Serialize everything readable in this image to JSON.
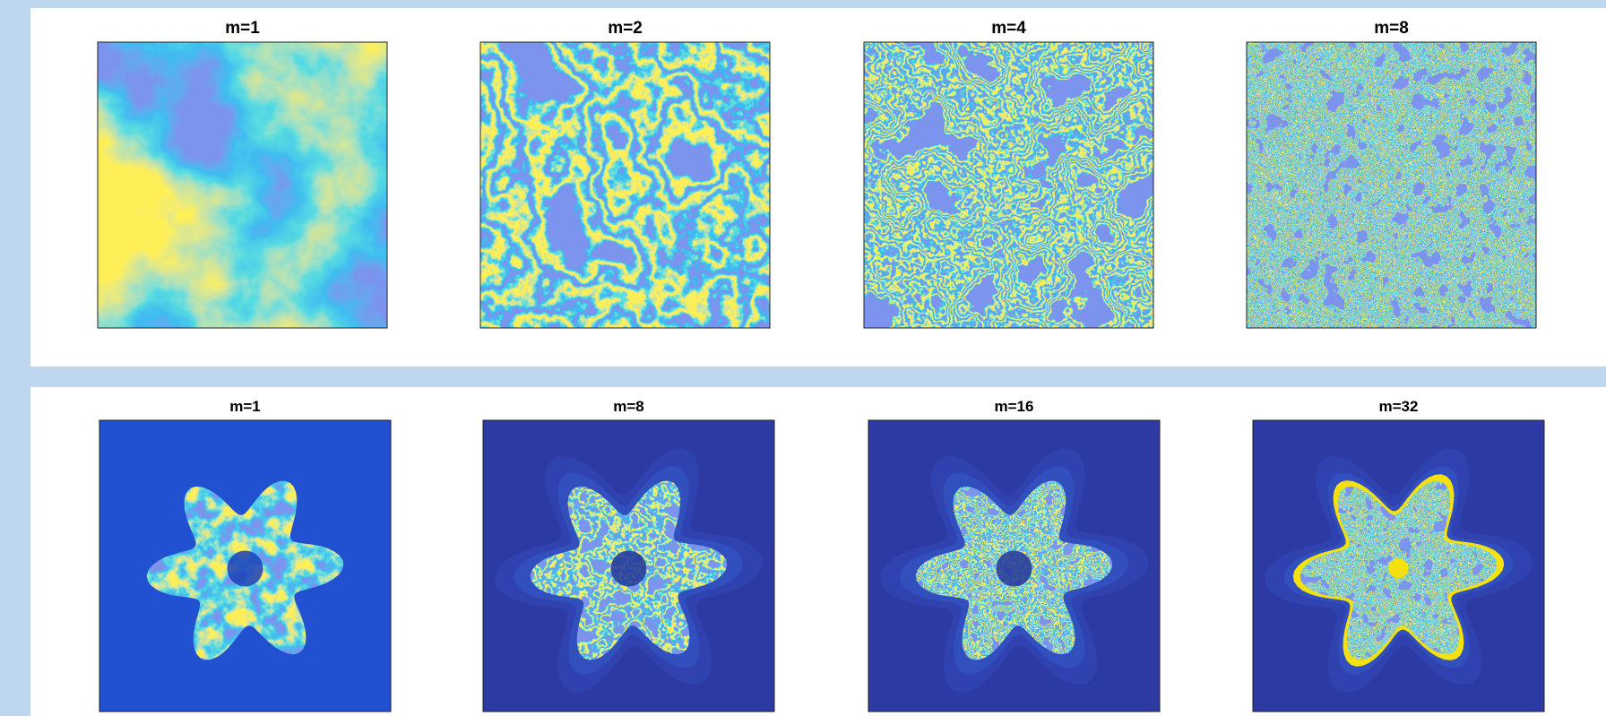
{
  "panels": [
    {
      "titles": [
        "m=1",
        "m=2",
        "m=4",
        "m=8"
      ]
    },
    {
      "titles": [
        "m=1",
        "m=8",
        "m=16",
        "m=32"
      ]
    }
  ]
}
